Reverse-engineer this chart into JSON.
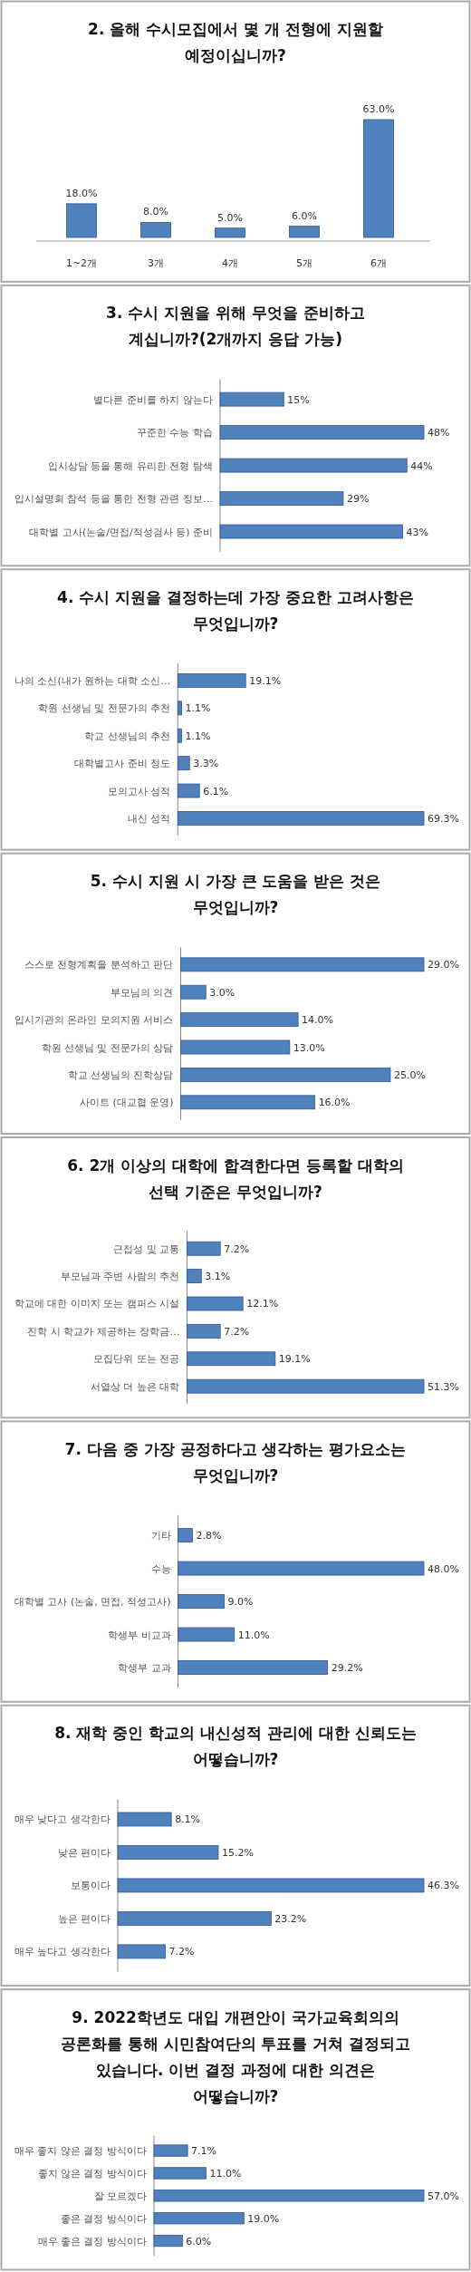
{
  "chart_data": [
    {
      "type": "bar",
      "title": "2. 올해 수시모집에서 몇 개 전형에 지원할 예정이십니까?",
      "categories": [
        "1~2개",
        "3개",
        "4개",
        "5개",
        "6개"
      ],
      "values": [
        18.0,
        8.0,
        5.0,
        6.0,
        63.0
      ],
      "value_labels": [
        "18.0%",
        "8.0%",
        "5.0%",
        "6.0%",
        "63.0%"
      ],
      "color": "#4f81bd"
    },
    {
      "type": "bar",
      "orientation": "horizontal",
      "title": "3. 수시 지원을 위해 무엇을 준비하고 계십니까?(2개까지 응답 가능)",
      "categories": [
        "별다른 준비를 하지 않는다",
        "꾸준한 수능 학습",
        "입시상담 등을 통해 유리한 전형 탐색",
        "입시설명회 참석 등을 통한 전형 관련 정보…",
        "대학별 고사(논술/면접/적성검사 등) 준비"
      ],
      "values": [
        15,
        48,
        44,
        29,
        43
      ],
      "value_labels": [
        "15%",
        "48%",
        "44%",
        "29%",
        "43%"
      ],
      "color": "#4f81bd"
    },
    {
      "type": "bar",
      "orientation": "horizontal",
      "title": "4. 수시 지원을 결정하는데 가장 중요한 고려사항은 무엇입니까?",
      "categories": [
        "나의 소신(내가 원하는 대학 소신…",
        "학원 선생님 및 전문가의 추천",
        "학교 선생님의 추천",
        "대학별고사 준비 정도",
        "모의고사 성적",
        "내신 성적"
      ],
      "values": [
        19.1,
        1.1,
        1.1,
        3.3,
        6.1,
        69.3
      ],
      "value_labels": [
        "19.1%",
        "1.1%",
        "1.1%",
        "3.3%",
        "6.1%",
        "69.3%"
      ],
      "color": "#4f81bd"
    },
    {
      "type": "bar",
      "orientation": "horizontal",
      "title": "5. 수시 지원 시 가장 큰 도움을 받은 것은 무엇입니까?",
      "categories": [
        "스스로 전형계획을 분석하고 판단",
        "부모님의 의견",
        "입시기관의 온라인 모의지원 서비스",
        "학원 선생님 및 전문가의 상담",
        "학교 선생님의 진학상담",
        "사이트 (대교협 운영)"
      ],
      "values": [
        29.0,
        3.0,
        14.0,
        13.0,
        25.0,
        16.0
      ],
      "value_labels": [
        "29.0%",
        "3.0%",
        "14.0%",
        "13.0%",
        "25.0%",
        "16.0%"
      ],
      "color": "#4f81bd"
    },
    {
      "type": "bar",
      "orientation": "horizontal",
      "title": "6. 2개 이상의 대학에 합격한다면 등록할 대학의 선택 기준은 무엇입니까?",
      "categories": [
        "근접성 및 교통",
        "부모님과 주변 사람의 추천",
        "학교에 대한 이미지 또는 캠퍼스 시설",
        "진학 시 학교가 제공하는 장학금…",
        "모집단위 또는 전공",
        "서열상 더 높은 대학"
      ],
      "values": [
        7.2,
        3.1,
        12.1,
        7.2,
        19.1,
        51.3
      ],
      "value_labels": [
        "7.2%",
        "3.1%",
        "12.1%",
        "7.2%",
        "19.1%",
        "51.3%"
      ],
      "color": "#4f81bd"
    },
    {
      "type": "bar",
      "orientation": "horizontal",
      "title": "7. 다음 중 가장 공정하다고 생각하는 평가요소는 무엇입니까?",
      "categories": [
        "기타",
        "수능",
        "대학별 고사 (논술, 면접, 적성고사)",
        "학생부 비교과",
        "학생부 교과"
      ],
      "values": [
        2.8,
        48.0,
        9.0,
        11.0,
        29.2
      ],
      "value_labels": [
        "2.8%",
        "48.0%",
        "9.0%",
        "11.0%",
        "29.2%"
      ],
      "color": "#4f81bd"
    },
    {
      "type": "bar",
      "orientation": "horizontal",
      "title": "8. 재학 중인 학교의 내신성적 관리에 대한 신뢰도는 어떻습니까?",
      "categories": [
        "매우 낮다고 생각한다",
        "낮은 편이다",
        "보통이다",
        "높은 편이다",
        "매우 높다고 생각한다"
      ],
      "values": [
        8.1,
        15.2,
        46.3,
        23.2,
        7.2
      ],
      "value_labels": [
        "8.1%",
        "15.2%",
        "46.3%",
        "23.2%",
        "7.2%"
      ],
      "color": "#4f81bd"
    },
    {
      "type": "bar",
      "orientation": "horizontal",
      "title": "9. 2022학년도 대입 개편안이 국가교육회의의 공론화를 통해 시민참여단의 투표를 거쳐 결정되고 있습니다. 이번 결정 과정에 대한 의견은 어떻습니까?",
      "categories": [
        "매우 좋지 않은 결정 방식이다",
        "좋지 않은 결정 방식이다",
        "잘 모르겠다",
        "좋은 결정 방식이다",
        "매우 좋은 결정 방식이다"
      ],
      "values": [
        7.1,
        11.0,
        57.0,
        19.0,
        6.0
      ],
      "value_labels": [
        "7.1%",
        "11.0%",
        "57.0%",
        "19.0%",
        "6.0%"
      ],
      "color": "#4f81bd"
    }
  ]
}
